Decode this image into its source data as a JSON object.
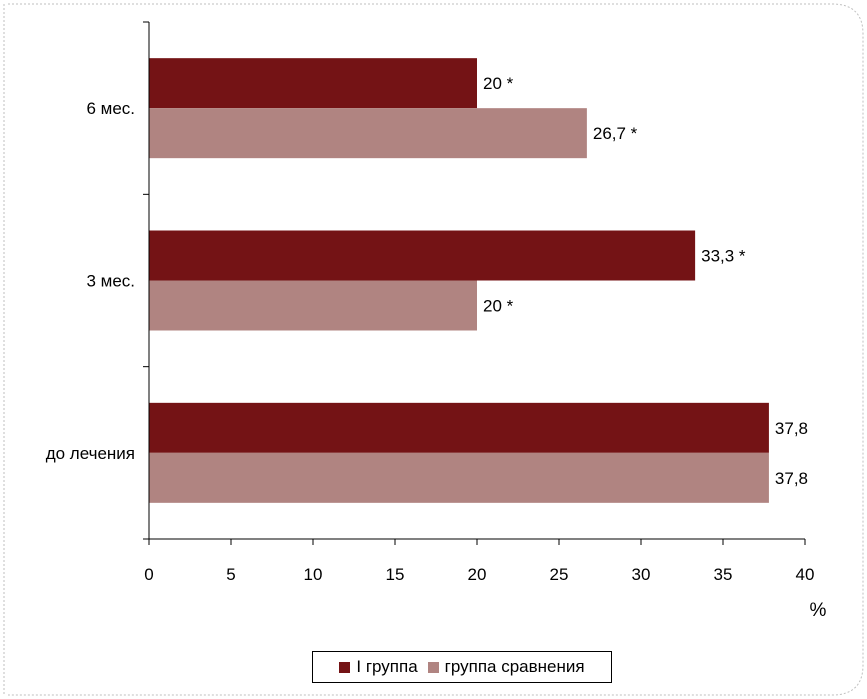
{
  "chart_data": {
    "type": "bar",
    "orientation": "horizontal",
    "categories": [
      "до лечения",
      "3 мес.",
      "6 мес."
    ],
    "series": [
      {
        "name": "I группа",
        "values": [
          37.8,
          33.3,
          20
        ],
        "labels": [
          "37,8",
          "33,3 *",
          "20 *"
        ],
        "color": "#741315"
      },
      {
        "name": "группа сравнения",
        "values": [
          37.8,
          20,
          26.7
        ],
        "labels": [
          "37,8",
          "20 *",
          "26,7 *"
        ],
        "color": "#b08481"
      }
    ],
    "x_ticks": [
      "0",
      "5",
      "10",
      "15",
      "20",
      "25",
      "30",
      "35",
      "40"
    ],
    "xlim": [
      0,
      40
    ],
    "xlabel": "%",
    "legend_position": "bottom",
    "grid": false
  }
}
